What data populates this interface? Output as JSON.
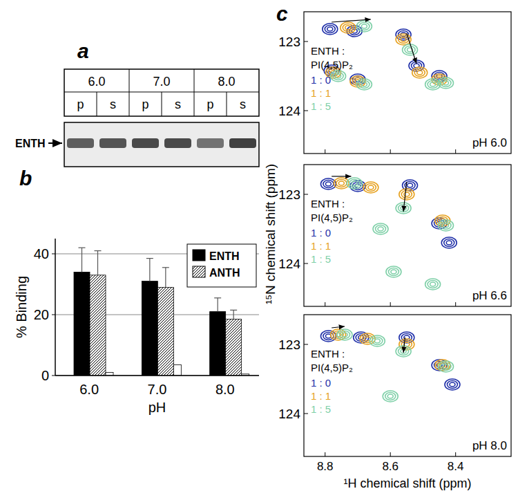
{
  "panel_labels": [
    "a",
    "b",
    "c"
  ],
  "panel_a": {
    "ph": [
      "6.0",
      "7.0",
      "8.0"
    ],
    "fractions": [
      "p",
      "s",
      "p",
      "s",
      "p",
      "s"
    ],
    "protein": "ENTH",
    "band_intensity": [
      0.7,
      0.75,
      0.8,
      0.8,
      0.6,
      0.85
    ]
  },
  "chart_data": {
    "type": "bar",
    "categories": [
      "6.0",
      "7.0",
      "8.0"
    ],
    "x_label": "pH",
    "y_label": "% Binding",
    "ylim": [
      0,
      45
    ],
    "yticks": [
      0,
      20,
      40
    ],
    "grid": true,
    "legend": "upper right",
    "series": [
      {
        "name": "ENTH",
        "color": "#000000",
        "values": [
          34,
          31,
          21
        ],
        "errors": [
          8,
          7.5,
          4.5
        ]
      },
      {
        "name": "ANTH",
        "color": "#a8a8a8",
        "values": [
          33,
          29,
          18.5
        ],
        "errors": [
          8,
          6.5,
          3
        ]
      },
      {
        "color": "#ffffff",
        "values": [
          1,
          3.5,
          0.5
        ]
      }
    ]
  },
  "panel_c": {
    "x_label": "¹H chemical shift (ppm)",
    "y_label": "¹⁵N chemical shift (ppm)",
    "xlim": [
      8.865,
      8.23
    ],
    "xticks": [
      8.8,
      8.6,
      8.4
    ],
    "ylim": [
      122.57,
      124.62
    ],
    "yticks": [
      123,
      124
    ],
    "legend_title": [
      "ENTH :",
      "PI(4,5)P₂"
    ],
    "panels": [
      {
        "label": "pH 6.0",
        "arrows": [
          {
            "from": [
              8.78,
              122.72
            ],
            "to": [
              8.66,
              122.68
            ]
          },
          {
            "from": [
              8.55,
              122.88
            ],
            "to": [
              8.52,
              123.32
            ]
          }
        ],
        "series": [
          {
            "name": "1 : 0",
            "color": "#1f2fa8",
            "peaks": [
              [
                8.785,
                122.82
              ],
              [
                8.71,
                122.85
              ],
              [
                8.56,
                122.9
              ],
              [
                8.52,
                123.35
              ],
              [
                8.78,
                123.42
              ],
              [
                8.7,
                123.55
              ],
              [
                8.45,
                123.5
              ]
            ]
          },
          {
            "name": "1 : 1",
            "color": "#e6a11f",
            "peaks": [
              [
                8.73,
                122.8
              ],
              [
                8.56,
                122.97
              ],
              [
                8.51,
                123.45
              ],
              [
                8.775,
                123.45
              ],
              [
                8.7,
                123.58
              ],
              [
                8.45,
                123.55
              ]
            ]
          },
          {
            "name": "1 : 5",
            "color": "#7fd0a8",
            "peaks": [
              [
                8.68,
                122.78
              ],
              [
                8.54,
                123.12
              ],
              [
                8.47,
                123.62
              ],
              [
                8.76,
                123.5
              ],
              [
                8.68,
                123.62
              ],
              [
                8.43,
                123.6
              ]
            ]
          }
        ]
      },
      {
        "label": "pH 6.6",
        "arrows": [
          {
            "from": [
              8.78,
              122.74
            ],
            "to": [
              8.72,
              122.74
            ]
          },
          {
            "from": [
              8.55,
              122.82
            ],
            "to": [
              8.56,
              123.25
            ]
          }
        ],
        "series": [
          {
            "name": "1 : 0",
            "color": "#1f2fa8",
            "peaks": [
              [
                8.79,
                122.85
              ],
              [
                8.7,
                122.88
              ],
              [
                8.54,
                122.87
              ],
              [
                8.45,
                123.42
              ],
              [
                8.42,
                123.7
              ]
            ]
          },
          {
            "name": "1 : 1",
            "color": "#e6a11f",
            "peaks": [
              [
                8.75,
                122.84
              ],
              [
                8.55,
                123.0
              ],
              [
                8.44,
                123.38
              ],
              [
                8.66,
                122.9
              ]
            ]
          },
          {
            "name": "1 : 5",
            "color": "#7fd0a8",
            "peaks": [
              [
                8.71,
                122.84
              ],
              [
                8.56,
                123.2
              ],
              [
                8.43,
                123.45
              ],
              [
                8.63,
                123.5
              ],
              [
                8.59,
                124.12
              ],
              [
                8.47,
                124.3
              ]
            ]
          }
        ]
      },
      {
        "label": "pH 8.0",
        "arrows": [
          {
            "from": [
              8.78,
              122.76
            ],
            "to": [
              8.74,
              122.74
            ]
          },
          {
            "from": [
              8.555,
              122.9
            ],
            "to": [
              8.56,
              123.12
            ]
          }
        ],
        "series": [
          {
            "name": "1 : 0",
            "color": "#1f2fa8",
            "peaks": [
              [
                8.79,
                122.88
              ],
              [
                8.69,
                122.9
              ],
              [
                8.55,
                122.9
              ],
              [
                8.45,
                123.3
              ],
              [
                8.41,
                123.58
              ]
            ]
          },
          {
            "name": "1 : 1",
            "color": "#e6a11f",
            "peaks": [
              [
                8.76,
                122.86
              ],
              [
                8.67,
                122.92
              ],
              [
                8.55,
                123.0
              ],
              [
                8.44,
                123.3
              ]
            ]
          },
          {
            "name": "1 : 5",
            "color": "#7fd0a8",
            "peaks": [
              [
                8.74,
                122.86
              ],
              [
                8.64,
                122.95
              ],
              [
                8.56,
                123.1
              ],
              [
                8.43,
                123.32
              ],
              [
                8.6,
                123.75
              ]
            ]
          }
        ]
      }
    ]
  }
}
